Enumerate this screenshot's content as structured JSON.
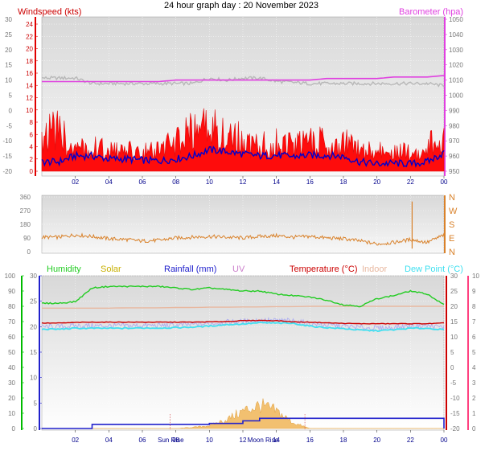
{
  "title": "24 hour graph day : 20 November 2023",
  "colors": {
    "wind": "#e00000",
    "gust_fill": "#ff0000",
    "avg": "#0000cc",
    "baro": "#e040e0",
    "gray_series": "#b8b8b8",
    "direction": "#d9822b",
    "humidity": "#22cc22",
    "solar": "#c8b000",
    "solar_fill": "#f2c070",
    "rainfall": "#2020cc",
    "uv": "#cc80cc",
    "temperature": "#cc0000",
    "indoor": "#e8b8a0",
    "dew": "#40e0f0",
    "wind_axis": "#ff0000",
    "humidity_axis": "#00bb00",
    "rain_axis": "#2020cc",
    "uv_axis": "#ff4080"
  },
  "x_ticks": [
    "02",
    "04",
    "06",
    "08",
    "10",
    "12",
    "14",
    "16",
    "18",
    "20",
    "22",
    "00"
  ],
  "panel1": {
    "left_label": "Windspeed (kts)",
    "right_label": "Barometer (hpa)",
    "outer_ticks": [
      "30",
      "25",
      "20",
      "15",
      "10",
      "5",
      "0",
      "-5",
      "-10",
      "-15",
      "-20"
    ],
    "wind_ticks": [
      "24",
      "22",
      "20",
      "18",
      "16",
      "14",
      "12",
      "10",
      "8",
      "6",
      "4",
      "2",
      "0"
    ],
    "baro_ticks": [
      "1050",
      "1040",
      "1030",
      "1020",
      "1010",
      "1000",
      "990",
      "980",
      "970",
      "960",
      "950"
    ]
  },
  "panel2": {
    "left_ticks": [
      "360",
      "270",
      "180",
      "90",
      "0"
    ],
    "right_ticks": [
      "N",
      "W",
      "S",
      "E",
      "N"
    ]
  },
  "panel3": {
    "legend": [
      "Humidity",
      "Solar",
      "Rainfall (mm)",
      "UV",
      "Temperature (°C)",
      "Indoor",
      "Dew Point (°C)"
    ],
    "humidity_ticks": [
      "100",
      "90",
      "80",
      "70",
      "60",
      "50",
      "40",
      "30",
      "20",
      "10",
      "0"
    ],
    "rain_ticks": [
      "30",
      "25",
      "20",
      "15",
      "10",
      "5",
      "0"
    ],
    "temp_ticks": [
      "30",
      "25",
      "20",
      "15",
      "10",
      "5",
      "0",
      "-5",
      "-10",
      "-15",
      "-20"
    ],
    "uv_ticks": [
      "10",
      "9",
      "8",
      "7",
      "6",
      "5",
      "4",
      "3",
      "2",
      "1",
      "0"
    ],
    "events": [
      "Sun Rise",
      "Moon Rise"
    ]
  },
  "chart_data": [
    {
      "type": "line",
      "x": [
        "01:00",
        "02:00",
        "03:00",
        "04:00",
        "05:00",
        "06:00",
        "07:00",
        "08:00",
        "09:00",
        "10:00",
        "11:00",
        "12:00",
        "13:00",
        "14:00",
        "15:00",
        "16:00",
        "17:00",
        "18:00",
        "19:00",
        "20:00",
        "21:00",
        "22:00",
        "23:00",
        "00:00"
      ],
      "series": [
        {
          "values": [
            8,
            4,
            5,
            4,
            4,
            4,
            4,
            6,
            8,
            9,
            8,
            6,
            5,
            6,
            5,
            6,
            6,
            6,
            4,
            4,
            4,
            4,
            5,
            7
          ]
        },
        {
          "values": [
            1.5,
            2.5,
            2.5,
            2,
            2,
            1.8,
            1.7,
            2,
            2.5,
            3.5,
            3.2,
            2.8,
            2.5,
            2.6,
            2.4,
            2.6,
            2.6,
            2.4,
            1.5,
            1.2,
            1.3,
            1.2,
            1.5,
            3
          ]
        },
        {
          "values": [
            1009,
            1009,
            1009,
            1009,
            1009,
            1009,
            1009,
            1010,
            1010,
            1010,
            1010,
            1010,
            1010,
            1010,
            1010,
            1010,
            1011,
            1011,
            1011,
            1011,
            1012,
            1012,
            1012,
            1013
          ]
        },
        {
          "values": [
            3,
            3,
            2.5,
            2.5,
            2.5,
            2.5,
            2.5,
            2.5,
            2.5,
            3,
            2.8,
            3,
            3,
            2.7,
            2.6,
            2.5,
            2.5,
            2.5,
            2.5,
            2.5,
            2.5,
            2.5,
            2.5,
            2.3
          ]
        }
      ],
      "ylim": [
        0,
        25
      ],
      "y2lim": [
        950,
        1050
      ]
    },
    {
      "type": "line",
      "x": [
        "01:00",
        "02:00",
        "03:00",
        "04:00",
        "05:00",
        "06:00",
        "07:00",
        "08:00",
        "09:00",
        "10:00",
        "11:00",
        "12:00",
        "13:00",
        "14:00",
        "15:00",
        "16:00",
        "17:00",
        "18:00",
        "19:00",
        "20:00",
        "21:00",
        "22:00",
        "23:00",
        "00:00"
      ],
      "series": [
        {
          "values": [
            95,
            110,
            100,
            85,
            80,
            70,
            75,
            90,
            95,
            100,
            95,
            90,
            100,
            105,
            95,
            100,
            90,
            85,
            70,
            50,
            60,
            80,
            60,
            110
          ]
        }
      ],
      "ylim": [
        0,
        360
      ]
    },
    {
      "type": "line",
      "x": [
        "01:00",
        "02:00",
        "03:00",
        "04:00",
        "05:00",
        "06:00",
        "07:00",
        "08:00",
        "09:00",
        "10:00",
        "11:00",
        "12:00",
        "13:00",
        "14:00",
        "15:00",
        "16:00",
        "17:00",
        "18:00",
        "19:00",
        "20:00",
        "21:00",
        "22:00",
        "23:00",
        "00:00"
      ],
      "series": [
        {
          "values": [
            82,
            83,
            92,
            93,
            93,
            93,
            93,
            92,
            91,
            92,
            91,
            90,
            90,
            88,
            87,
            86,
            84,
            81,
            80,
            85,
            87,
            90,
            88,
            81
          ]
        },
        {
          "values": [
            14.5,
            14.7,
            14.8,
            14.8,
            14.8,
            14.8,
            14.8,
            14.8,
            14.8,
            14.9,
            15,
            15.3,
            15.4,
            15.3,
            14.9,
            14.8,
            14.6,
            14.4,
            14.3,
            14.3,
            14.3,
            14.3,
            14.3,
            14.5
          ]
        },
        {
          "values": [
            12.5,
            12.8,
            12.8,
            12.8,
            12.8,
            12.9,
            12.9,
            13,
            13.2,
            13.5,
            14,
            14.2,
            14.6,
            14.5,
            14.4,
            13.5,
            13,
            12.7,
            12.2,
            12,
            12.3,
            12.8,
            12.8,
            12.3
          ]
        },
        {
          "values": [
            19.4,
            19.4,
            19.4,
            19.4,
            19.5,
            19.5,
            19.5,
            19.6,
            19.6,
            19.7,
            19.7,
            19.8,
            19.8,
            19.9,
            19.9,
            20,
            20,
            20,
            20,
            20,
            20,
            20,
            20,
            20
          ]
        },
        {
          "values": [
            0,
            0,
            0.8,
            0.8,
            0.8,
            0.8,
            0.8,
            0.8,
            0.8,
            1,
            1,
            1.5,
            2,
            2,
            2,
            2,
            2,
            2,
            2,
            2,
            2,
            2,
            2,
            0
          ]
        },
        {
          "values": [
            0,
            0,
            0,
            0,
            0,
            0,
            0,
            0,
            0.2,
            0.5,
            1.5,
            3,
            4,
            3,
            1,
            0,
            0,
            0,
            0,
            0,
            0,
            0,
            0,
            0
          ]
        }
      ],
      "ylim": [
        0,
        100
      ],
      "y2lim": [
        -20,
        30
      ]
    }
  ]
}
